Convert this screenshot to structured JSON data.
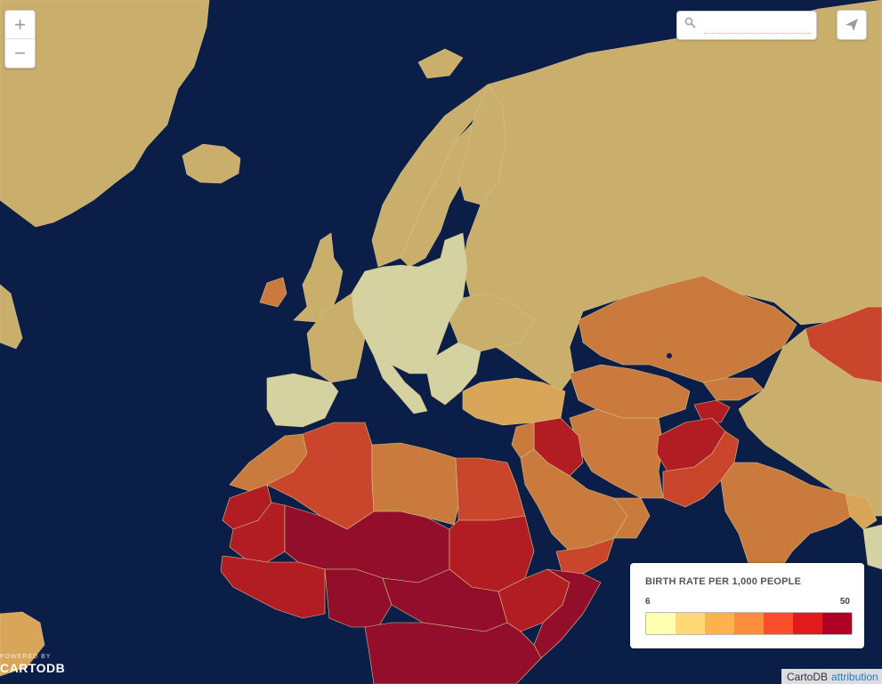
{
  "zoom": {
    "in_label": "+",
    "out_label": "−"
  },
  "search": {
    "placeholder": ""
  },
  "legend": {
    "title": "BIRTH RATE PER 1,000 PEOPLE",
    "min": "6",
    "max": "50",
    "ramp": [
      "#ffffb2",
      "#fed976",
      "#feb24c",
      "#fd8d3c",
      "#fc4e2a",
      "#e31a1c",
      "#b10026"
    ]
  },
  "logo": {
    "line1": "POWERED BY",
    "line2": "CARTODB"
  },
  "attribution": {
    "provider": "CartoDB",
    "link": "attribution"
  },
  "colors": {
    "ocean": "#0b1e47",
    "land": "#c9ae6c"
  }
}
